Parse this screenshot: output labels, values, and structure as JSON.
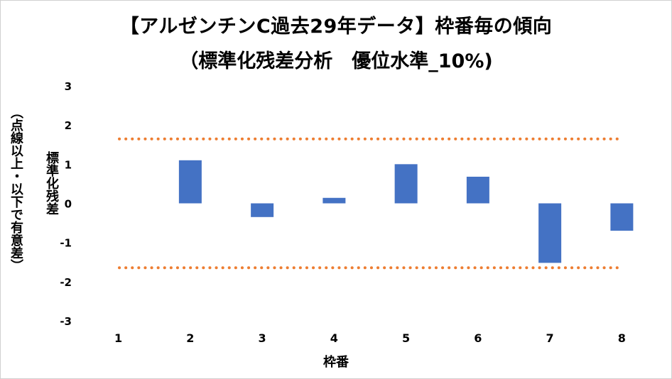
{
  "title": "【アルゼンチンC過去29年データ】枠番毎の傾向",
  "subtitle": "（標準化残差分析　優位水準_10%)",
  "ylabel_line1": "（点線以上・以下で有意差）",
  "ylabel_line2": "標準化残差",
  "colors": {
    "bar": "#4472c4",
    "threshold": "#ed7d31"
  },
  "chart_data": {
    "type": "bar",
    "title": "【アルゼンチンC過去29年データ】枠番毎の傾向",
    "subtitle": "（標準化残差分析　優位水準_10%)",
    "xlabel": "枠番",
    "ylabel": "標準化残差",
    "categories": [
      "1",
      "2",
      "3",
      "4",
      "5",
      "6",
      "7",
      "8"
    ],
    "values": [
      0,
      1.1,
      -0.35,
      0.14,
      1.0,
      0.68,
      -1.52,
      -0.7
    ],
    "ylim": [
      -3,
      3
    ],
    "yticks": [
      "3",
      "2",
      "1",
      "0",
      "-1",
      "-2",
      "-3"
    ],
    "thresholds": [
      1.645,
      -1.645
    ],
    "grid": false,
    "legend": "none"
  }
}
